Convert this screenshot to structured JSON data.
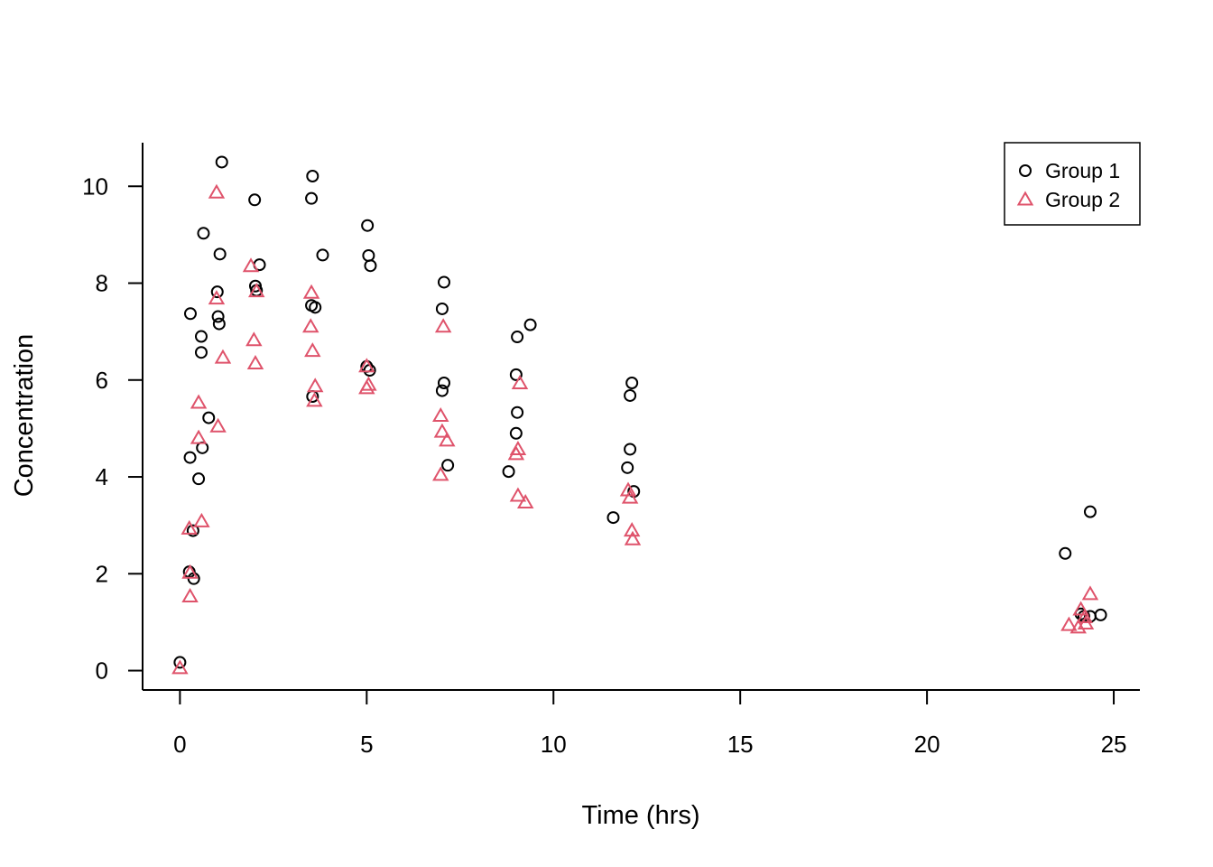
{
  "chart_data": {
    "type": "scatter",
    "title": "",
    "xlabel": "Time (hrs)",
    "ylabel": "Concentration",
    "xlim": [
      -1,
      25.7
    ],
    "ylim": [
      -0.4,
      10.9
    ],
    "xticks": [
      0,
      5,
      10,
      15,
      20,
      25
    ],
    "yticks": [
      0,
      2,
      4,
      6,
      8,
      10
    ],
    "grid": false,
    "legend_position": "top-right",
    "series": [
      {
        "name": "Group 1",
        "marker": "circle",
        "color": "#000000",
        "points": [
          [
            0.0,
            0.17
          ],
          [
            0.25,
            2.04
          ],
          [
            0.27,
            4.4
          ],
          [
            0.28,
            7.37
          ],
          [
            0.35,
            2.89
          ],
          [
            0.37,
            1.9
          ],
          [
            0.5,
            3.96
          ],
          [
            0.57,
            6.9
          ],
          [
            0.57,
            6.57
          ],
          [
            0.6,
            4.6
          ],
          [
            0.63,
            9.03
          ],
          [
            0.77,
            5.22
          ],
          [
            1.0,
            7.82
          ],
          [
            1.02,
            7.31
          ],
          [
            1.05,
            7.16
          ],
          [
            1.07,
            8.6
          ],
          [
            1.12,
            10.5
          ],
          [
            2.0,
            9.72
          ],
          [
            2.02,
            7.94
          ],
          [
            2.05,
            7.85
          ],
          [
            2.13,
            8.38
          ],
          [
            3.52,
            9.75
          ],
          [
            3.55,
            10.21
          ],
          [
            3.52,
            7.54
          ],
          [
            3.62,
            7.5
          ],
          [
            3.55,
            5.66
          ],
          [
            3.82,
            8.58
          ],
          [
            5.02,
            9.19
          ],
          [
            5.05,
            8.57
          ],
          [
            5.1,
            8.36
          ],
          [
            5.0,
            6.28
          ],
          [
            5.08,
            6.2
          ],
          [
            7.07,
            8.02
          ],
          [
            7.02,
            7.47
          ],
          [
            7.07,
            5.94
          ],
          [
            7.02,
            5.78
          ],
          [
            7.17,
            4.24
          ],
          [
            9.38,
            7.14
          ],
          [
            9.03,
            6.89
          ],
          [
            9.0,
            6.11
          ],
          [
            9.03,
            5.33
          ],
          [
            9.0,
            4.9
          ],
          [
            8.8,
            4.11
          ],
          [
            12.1,
            5.94
          ],
          [
            12.05,
            5.68
          ],
          [
            12.05,
            4.57
          ],
          [
            11.98,
            4.19
          ],
          [
            12.15,
            3.7
          ],
          [
            11.6,
            3.16
          ],
          [
            24.37,
            3.28
          ],
          [
            23.7,
            2.42
          ],
          [
            24.12,
            1.17
          ],
          [
            24.2,
            1.12
          ],
          [
            24.37,
            1.12
          ],
          [
            24.65,
            1.15
          ]
        ]
      },
      {
        "name": "Group 2",
        "marker": "triangle",
        "color": "#DF536B",
        "points": [
          [
            0.0,
            0.05
          ],
          [
            0.25,
            2.93
          ],
          [
            0.27,
            2.02
          ],
          [
            0.27,
            1.53
          ],
          [
            0.5,
            5.53
          ],
          [
            0.5,
            4.8
          ],
          [
            0.58,
            3.08
          ],
          [
            0.98,
            9.87
          ],
          [
            0.98,
            7.68
          ],
          [
            1.02,
            5.04
          ],
          [
            1.15,
            6.46
          ],
          [
            1.9,
            8.35
          ],
          [
            1.98,
            6.82
          ],
          [
            2.02,
            6.34
          ],
          [
            2.05,
            7.83
          ],
          [
            3.52,
            7.8
          ],
          [
            3.5,
            7.1
          ],
          [
            3.55,
            6.6
          ],
          [
            3.62,
            5.87
          ],
          [
            3.6,
            5.57
          ],
          [
            5.0,
            6.28
          ],
          [
            5.0,
            5.83
          ],
          [
            5.05,
            5.9
          ],
          [
            7.05,
            7.1
          ],
          [
            6.98,
            5.26
          ],
          [
            7.02,
            4.93
          ],
          [
            7.15,
            4.75
          ],
          [
            6.98,
            4.04
          ],
          [
            9.1,
            5.93
          ],
          [
            9.05,
            4.57
          ],
          [
            9.0,
            4.47
          ],
          [
            9.05,
            3.61
          ],
          [
            9.25,
            3.47
          ],
          [
            12.0,
            3.72
          ],
          [
            12.05,
            3.57
          ],
          [
            12.1,
            2.89
          ],
          [
            12.12,
            2.71
          ],
          [
            24.37,
            1.58
          ],
          [
            24.12,
            1.26
          ],
          [
            24.22,
            1.1
          ],
          [
            23.8,
            0.94
          ],
          [
            24.05,
            0.89
          ],
          [
            24.25,
            0.97
          ]
        ]
      }
    ]
  }
}
